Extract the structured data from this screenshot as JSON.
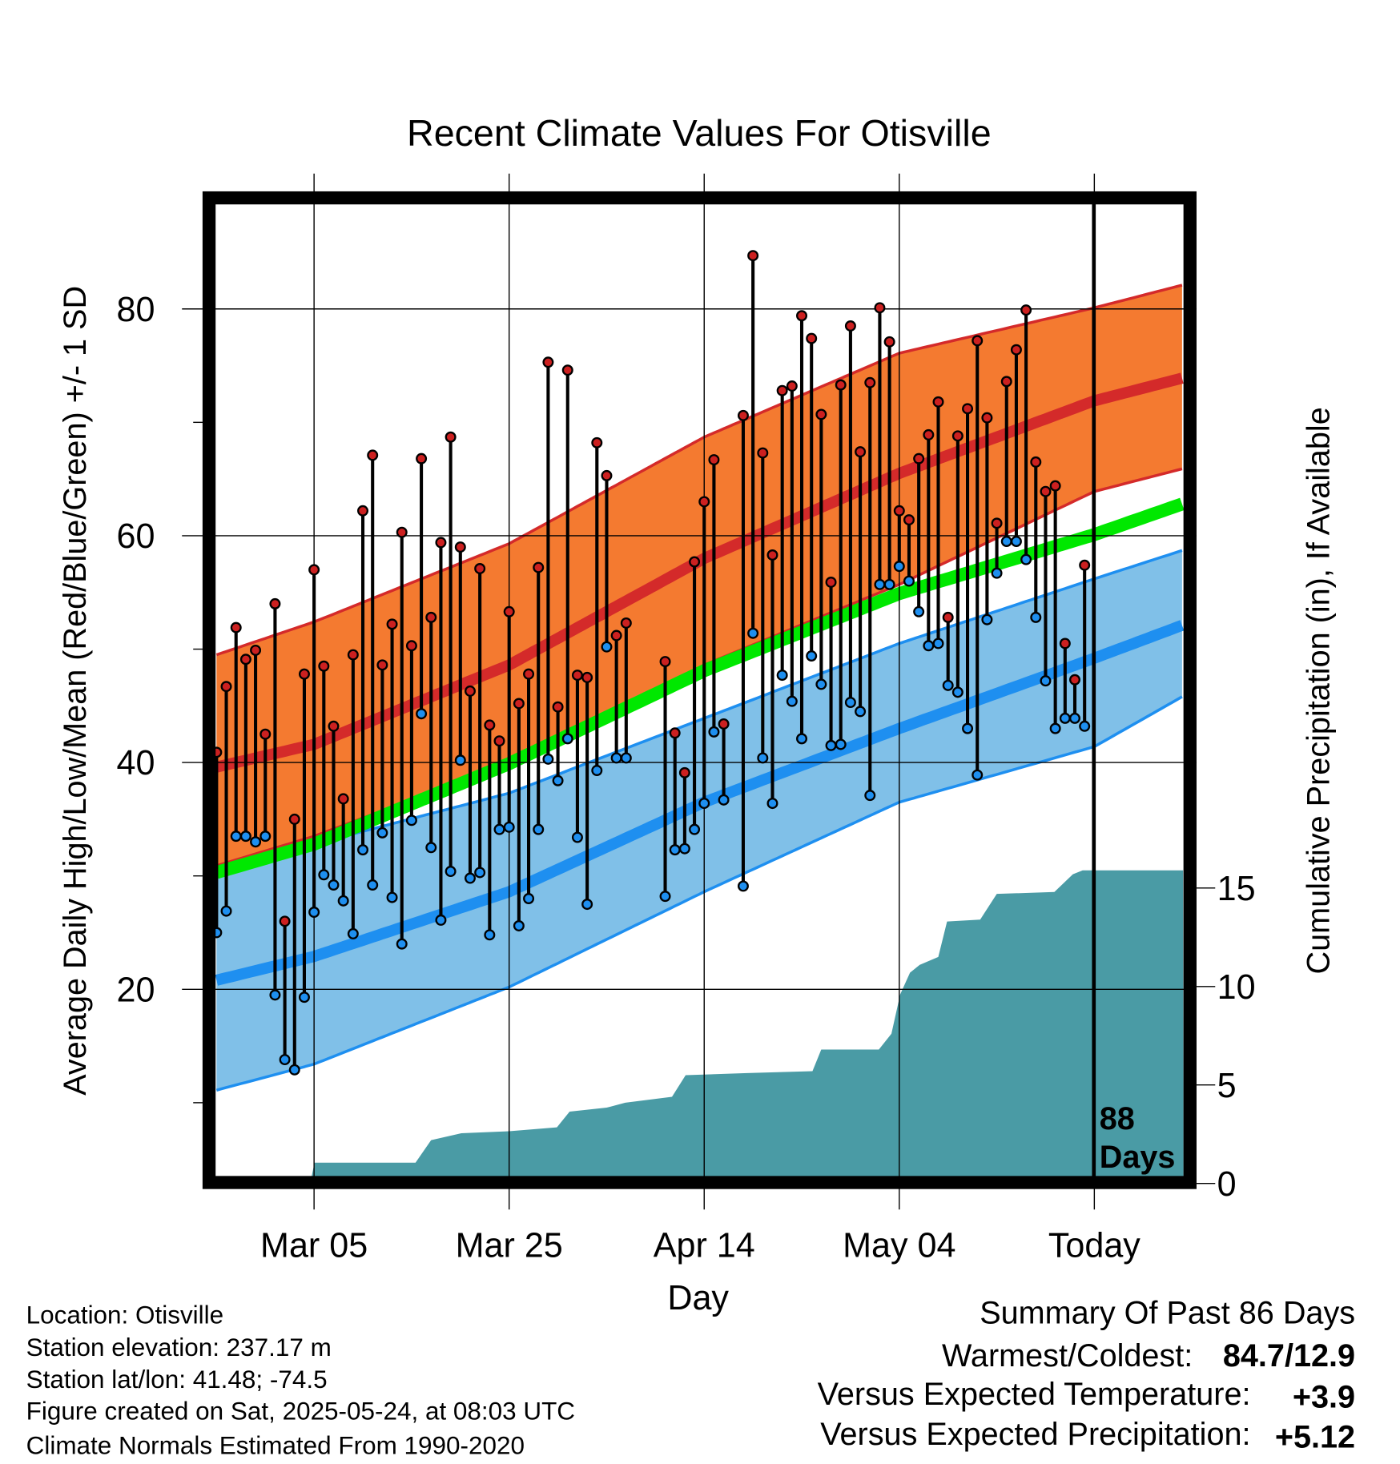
{
  "chart_data": {
    "type": "line",
    "title": "Recent Climate Values For Otisville",
    "xlabel": "Day",
    "ylabel": "Average Daily High/Low/Mean (Red/Blue/Green) +/- 1 SD",
    "y2label": "Cumulative Precipitation (in), If Available",
    "ylim": [
      3.5,
      89.5
    ],
    "y2lim": [
      0,
      18.9
    ],
    "xlim_days": [
      0,
      99
    ],
    "start_date": "Feb 23",
    "y_ticks": [
      20,
      40,
      60,
      80
    ],
    "y_minor_ticks": [
      10,
      30,
      50,
      70
    ],
    "y2_ticks": [
      0,
      5,
      10,
      15
    ],
    "x_ticks": [
      {
        "day": 10,
        "label": "Mar 05"
      },
      {
        "day": 30,
        "label": "Mar 25"
      },
      {
        "day": 50,
        "label": "Apr 14"
      },
      {
        "day": 70,
        "label": "May 04"
      },
      {
        "day": 90,
        "label": "Today"
      }
    ],
    "today_day": 90,
    "today_label_1": "88",
    "today_label_2": "Days",
    "normals": {
      "days": [
        0,
        10,
        30,
        50,
        70,
        90,
        99
      ],
      "high_plus_sd": [
        49.5,
        52.4,
        59.3,
        68.7,
        76.1,
        80.1,
        82.1
      ],
      "high_mean": [
        39.6,
        41.6,
        48.6,
        58.0,
        65.5,
        71.9,
        73.9
      ],
      "high_minus_sd": [
        30.9,
        33.5,
        39.9,
        48.6,
        55.7,
        63.9,
        65.9
      ],
      "mean": [
        30.3,
        32.8,
        39.9,
        48.1,
        54.9,
        60.1,
        62.8
      ],
      "low_plus_sd": [
        29.9,
        32.8,
        37.3,
        43.9,
        50.5,
        56.2,
        58.7
      ],
      "low_mean": [
        20.8,
        22.9,
        28.6,
        36.5,
        43.0,
        49.2,
        52.1
      ],
      "low_minus_sd": [
        11.1,
        13.4,
        20.2,
        28.6,
        36.5,
        41.4,
        45.8
      ]
    },
    "series": [
      {
        "name": "Daily High",
        "color": "#cc2020",
        "values": [
          40.9,
          46.7,
          51.9,
          49.1,
          49.9,
          42.5,
          54.0,
          26.0,
          35.0,
          47.8,
          57.0,
          48.5,
          43.2,
          36.8,
          49.5,
          62.2,
          67.1,
          48.6,
          52.2,
          60.3,
          50.3,
          66.8,
          52.8,
          59.4,
          68.7,
          59.0,
          46.3,
          57.1,
          43.3,
          41.9,
          53.3,
          45.2,
          47.8,
          57.2,
          75.3,
          44.9,
          74.6,
          47.7,
          47.5,
          68.2,
          65.3,
          51.2,
          52.3,
          null,
          null,
          null,
          48.9,
          42.6,
          39.1,
          57.7,
          63.0,
          66.7,
          43.4,
          null,
          70.6,
          84.7,
          67.3,
          58.3,
          72.8,
          73.2,
          79.4,
          77.4,
          70.7,
          55.9,
          73.3,
          78.5,
          67.4,
          73.5,
          80.1,
          77.1,
          62.2,
          61.4,
          66.8,
          68.9,
          71.8,
          52.8,
          68.8,
          71.2,
          77.2,
          70.4,
          61.1,
          73.6,
          76.4,
          79.9,
          66.5,
          63.9,
          64.4,
          50.5,
          47.3,
          57.4
        ]
      },
      {
        "name": "Daily Low",
        "color": "#1e8ff0",
        "values": [
          25.0,
          26.9,
          33.5,
          33.5,
          33.0,
          33.5,
          19.5,
          13.8,
          12.9,
          19.3,
          26.8,
          30.1,
          29.2,
          27.8,
          24.9,
          32.3,
          29.2,
          33.8,
          28.1,
          24.0,
          34.9,
          44.3,
          32.5,
          26.1,
          30.4,
          40.2,
          29.8,
          30.3,
          24.8,
          34.1,
          34.3,
          25.6,
          28.0,
          34.1,
          40.3,
          38.4,
          42.1,
          33.4,
          27.5,
          39.3,
          50.2,
          40.4,
          40.4,
          null,
          null,
          null,
          28.2,
          32.3,
          32.4,
          34.1,
          36.4,
          42.7,
          36.7,
          null,
          29.1,
          51.4,
          40.4,
          36.4,
          47.7,
          45.4,
          42.1,
          49.4,
          46.9,
          41.5,
          41.6,
          45.3,
          44.5,
          37.1,
          55.7,
          55.7,
          57.3,
          56.0,
          53.3,
          50.3,
          50.5,
          46.8,
          46.2,
          43.0,
          38.9,
          52.6,
          56.7,
          59.5,
          59.5,
          57.9,
          52.8,
          47.2,
          43.0,
          43.9,
          43.9,
          43.2
        ]
      }
    ],
    "precip": {
      "days": [
        9.6,
        10.05,
        20.4,
        22.0,
        25.1,
        30.0,
        34.9,
        36.2,
        40.0,
        41.9,
        46.7,
        48.1,
        54.4,
        61.1,
        62.0,
        67.9,
        69.2,
        70.1,
        71.1,
        72.1,
        74.0,
        74.9,
        78.3,
        80.0,
        85.9,
        87.8,
        88.8,
        99.1
      ],
      "cumulative": [
        0,
        1.05,
        1.05,
        2.2,
        2.55,
        2.65,
        2.85,
        3.65,
        3.85,
        4.1,
        4.4,
        5.5,
        5.6,
        5.7,
        6.8,
        6.8,
        7.6,
        9.6,
        10.7,
        11.1,
        11.5,
        13.3,
        13.4,
        14.7,
        14.8,
        15.7,
        15.9,
        15.9
      ]
    },
    "colors": {
      "high_band": "#f47a30",
      "high_line": "#d42a2a",
      "mean_line": "#00e800",
      "low_band": "#80c0e8",
      "low_line": "#1e8ff0",
      "precip": "#4a9ba5"
    }
  },
  "info": {
    "location": "Location: Otisville",
    "elevation": "Station elevation: 237.17 m",
    "latlon": "Station lat/lon: 41.48; -74.5",
    "created": "Figure created on Sat, 2025-05-24, at 08:03 UTC",
    "normals": "Climate Normals Estimated From 1990-2020"
  },
  "summary": {
    "title": "Summary Of Past 86 Days",
    "warm_cold_label": "Warmest/Coldest:",
    "warm_cold_value": "84.7/12.9",
    "temp_label": "Versus Expected Temperature:",
    "temp_value": "+3.9",
    "precip_label": "Versus Expected Precipitation:",
    "precip_value": "+5.12"
  }
}
